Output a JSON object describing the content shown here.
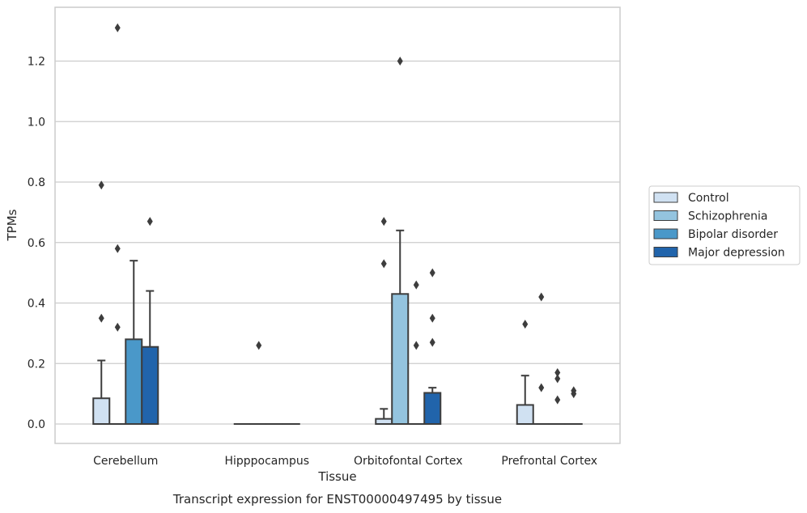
{
  "chart_data": {
    "type": "bar",
    "title": "",
    "caption": "Transcript expression for ENST00000497495 by tissue",
    "xlabel": "Tissue",
    "ylabel": "TPMs",
    "ylim": [
      -0.065,
      1.38
    ],
    "yticks": [
      0.0,
      0.2,
      0.4,
      0.6,
      0.8,
      1.0,
      1.2
    ],
    "ytick_labels": [
      "0.0",
      "0.2",
      "0.4",
      "0.6",
      "0.8",
      "1.0",
      "1.2"
    ],
    "grid": true,
    "legend_position": "right",
    "categories": [
      "Cerebellum",
      "Hipppocampus",
      "Orbitofontal Cortex",
      "Prefrontal Cortex"
    ],
    "series": [
      {
        "name": "Control",
        "color": "#d0e1f2",
        "values": [
          0.085,
          0.0,
          0.017,
          0.063
        ],
        "error_upper": [
          0.21,
          0.0,
          0.05,
          0.16
        ],
        "outliers": [
          [
            0.79,
            0.35
          ],
          [],
          [
            0.67,
            0.53
          ],
          [
            0.33
          ]
        ]
      },
      {
        "name": "Schizophrenia",
        "color": "#94c4df",
        "values": [
          0.0,
          0.0,
          0.43,
          0.0
        ],
        "error_upper": [
          null,
          null,
          0.64,
          null
        ],
        "outliers": [
          [
            1.31,
            0.58,
            0.32
          ],
          [
            0.26
          ],
          [
            1.2
          ],
          [
            0.42,
            0.12
          ]
        ]
      },
      {
        "name": "Bipolar disorder",
        "color": "#4a98c9",
        "values": [
          0.28,
          0.0,
          0.0,
          0.0
        ],
        "error_upper": [
          0.54,
          null,
          null,
          null
        ],
        "outliers": [
          [],
          [],
          [
            0.46,
            0.26
          ],
          [
            0.17,
            0.15,
            0.08
          ]
        ]
      },
      {
        "name": "Major depression",
        "color": "#2164ab",
        "values": [
          0.255,
          0.0,
          0.103,
          0.0
        ],
        "error_upper": [
          0.44,
          null,
          0.12,
          null
        ],
        "outliers": [
          [
            0.67
          ],
          [],
          [
            0.5,
            0.35,
            0.27
          ],
          [
            0.11,
            0.1
          ]
        ]
      }
    ]
  }
}
